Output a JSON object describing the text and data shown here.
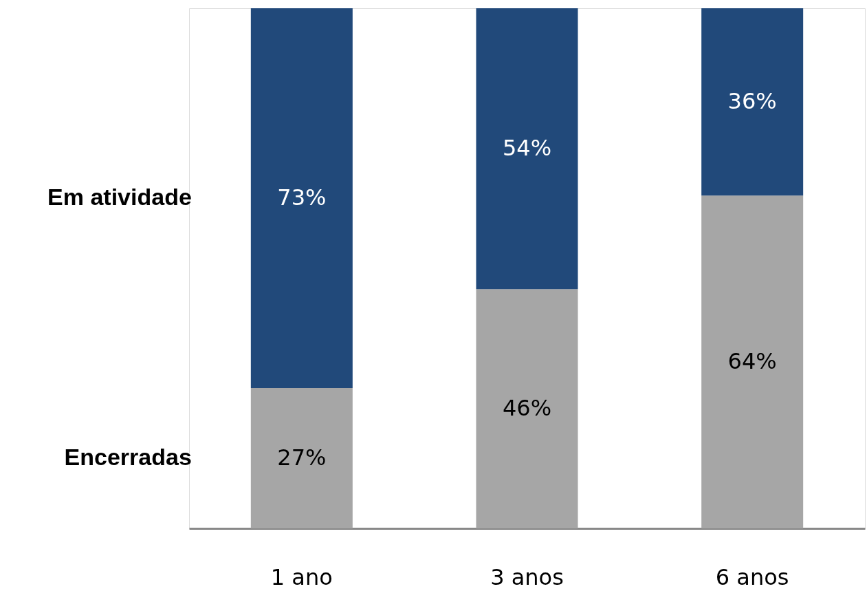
{
  "chart_data": {
    "type": "bar",
    "stacked": true,
    "legend": false,
    "categories": [
      "1 ano",
      "3 anos",
      "6 anos"
    ],
    "ylim": [
      0,
      100
    ],
    "series": [
      {
        "name": "Encerradas",
        "color": "#a6a6a6",
        "values": [
          27,
          46,
          64
        ],
        "value_labels": [
          "27%",
          "46%",
          "64%"
        ]
      },
      {
        "name": "Em atividade",
        "color": "#21497a",
        "values": [
          73,
          54,
          36
        ],
        "value_labels": [
          "73%",
          "54%",
          "36%"
        ]
      }
    ]
  }
}
